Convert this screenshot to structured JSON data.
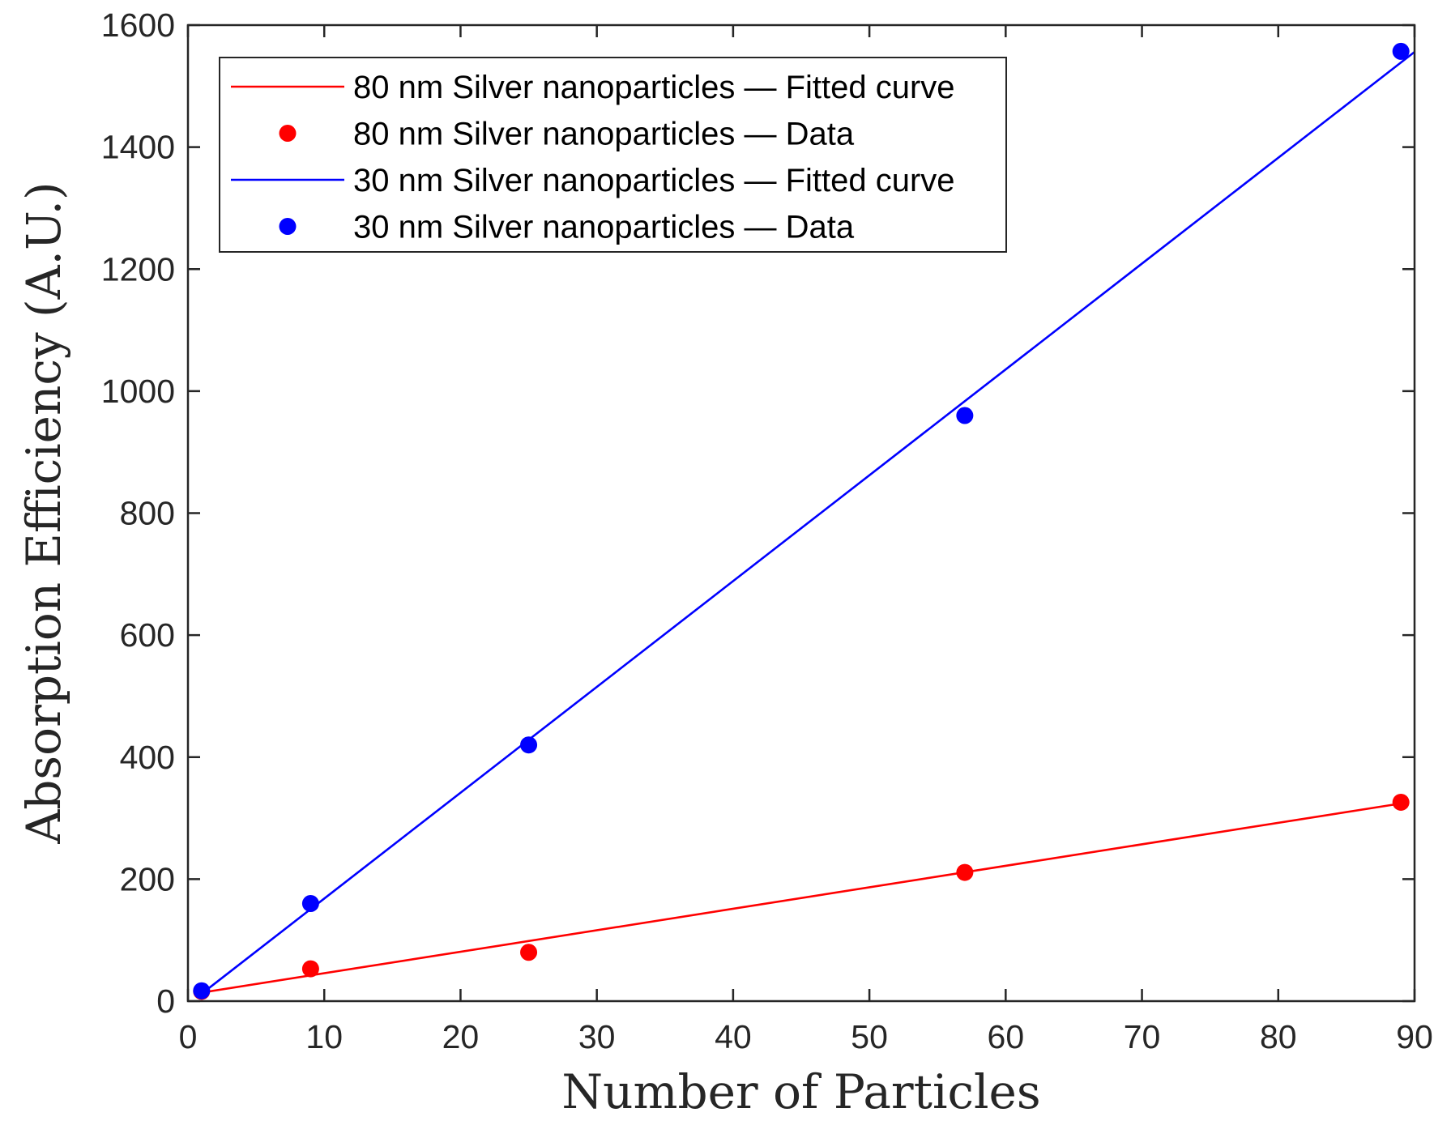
{
  "chart_data": {
    "type": "line",
    "xlabel": "Number of Particles",
    "ylabel": "Absorption Efficiency (A.U.)",
    "xlim": [
      0,
      90
    ],
    "ylim": [
      0,
      1600
    ],
    "xticks": [
      0,
      10,
      20,
      30,
      40,
      50,
      60,
      70,
      80,
      90
    ],
    "yticks": [
      0,
      200,
      400,
      600,
      800,
      1000,
      1200,
      1400,
      1600
    ],
    "grid": false,
    "legend_position": "top-left",
    "series": [
      {
        "name": "80 nm Silver nanoparticles — Fitted curve",
        "kind": "line",
        "color": "#ff0000",
        "x": [
          1,
          89
        ],
        "y": [
          14,
          324
        ]
      },
      {
        "name": "80 nm Silver nanoparticles — Data",
        "kind": "scatter",
        "color": "#ff0000",
        "x": [
          1,
          9,
          25,
          57,
          89
        ],
        "y": [
          16,
          53,
          80,
          211,
          326
        ]
      },
      {
        "name": "30 nm Silver nanoparticles — Fitted curve",
        "kind": "line",
        "color": "#0000ff",
        "x": [
          1,
          90
        ],
        "y": [
          12,
          1556
        ]
      },
      {
        "name": "30 nm Silver nanoparticles — Data",
        "kind": "scatter",
        "color": "#0000ff",
        "x": [
          1,
          9,
          25,
          57,
          89
        ],
        "y": [
          17,
          160,
          420,
          960,
          1557
        ]
      }
    ]
  }
}
